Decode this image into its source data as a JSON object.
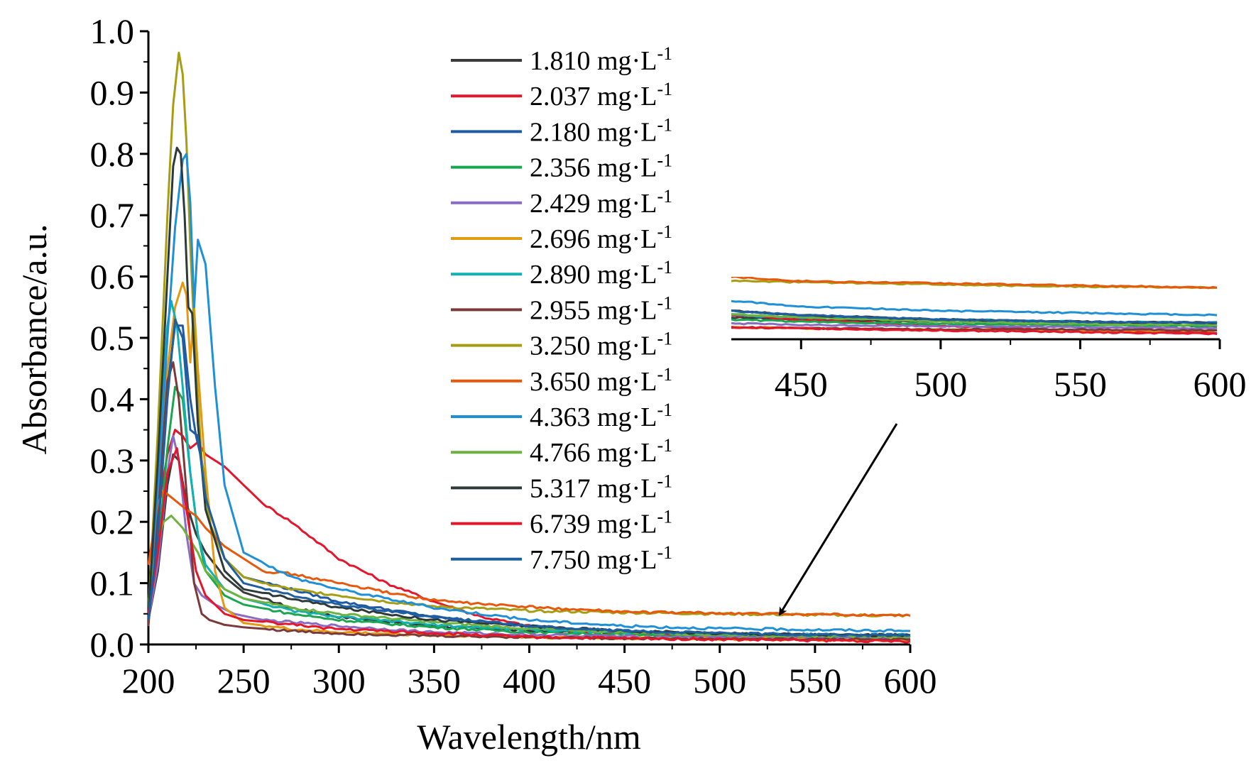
{
  "chart_data": {
    "type": "line",
    "xlabel": "Wavelength/nm",
    "ylabel": "Absorbance/a.u.",
    "xlim": [
      200,
      600
    ],
    "ylim": [
      0.0,
      1.0
    ],
    "x_ticks": [
      "200",
      "250",
      "300",
      "350",
      "400",
      "450",
      "500",
      "550",
      "600"
    ],
    "y_ticks": [
      "0.0",
      "0.1",
      "0.2",
      "0.3",
      "0.4",
      "0.5",
      "0.6",
      "0.7",
      "0.8",
      "0.9",
      "1.0"
    ],
    "legend_position": "top-right",
    "legend_unit": "mg·L",
    "legend_superscript": "-1",
    "series": [
      {
        "name": "1.810",
        "color": "#3a3a3a",
        "x": [
          200,
          205,
          210,
          213,
          216,
          220,
          225,
          230,
          240,
          250,
          275,
          300,
          350,
          400,
          450,
          500,
          550,
          600
        ],
        "y": [
          0.04,
          0.12,
          0.26,
          0.31,
          0.3,
          0.23,
          0.18,
          0.15,
          0.11,
          0.085,
          0.06,
          0.045,
          0.03,
          0.022,
          0.018,
          0.016,
          0.014,
          0.012
        ]
      },
      {
        "name": "2.037",
        "color": "#e4162b",
        "x": [
          200,
          205,
          210,
          214,
          218,
          222,
          226,
          230,
          240,
          250,
          260,
          275,
          300,
          325,
          350,
          375,
          400,
          425,
          450,
          500,
          550,
          600
        ],
        "y": [
          0.13,
          0.22,
          0.31,
          0.35,
          0.34,
          0.32,
          0.33,
          0.31,
          0.29,
          0.26,
          0.23,
          0.2,
          0.14,
          0.1,
          0.07,
          0.045,
          0.03,
          0.022,
          0.018,
          0.012,
          0.008,
          0.006
        ]
      },
      {
        "name": "2.180",
        "color": "#1f5aa6",
        "x": [
          200,
          205,
          210,
          214,
          218,
          222,
          225,
          228,
          232,
          240,
          250,
          275,
          300,
          350,
          400,
          450,
          500,
          550,
          600
        ],
        "y": [
          0.05,
          0.22,
          0.42,
          0.52,
          0.52,
          0.4,
          0.34,
          0.3,
          0.22,
          0.14,
          0.11,
          0.09,
          0.07,
          0.045,
          0.03,
          0.022,
          0.018,
          0.016,
          0.015
        ]
      },
      {
        "name": "2.356",
        "color": "#1aa650",
        "x": [
          200,
          205,
          210,
          214,
          218,
          222,
          226,
          230,
          240,
          250,
          275,
          300,
          350,
          400,
          450,
          500,
          550,
          600
        ],
        "y": [
          0.04,
          0.15,
          0.32,
          0.42,
          0.4,
          0.28,
          0.18,
          0.12,
          0.08,
          0.065,
          0.05,
          0.04,
          0.028,
          0.02,
          0.016,
          0.014,
          0.013,
          0.012
        ]
      },
      {
        "name": "2.429",
        "color": "#8a6cc2",
        "x": [
          200,
          205,
          210,
          213,
          216,
          220,
          224,
          228,
          235,
          245,
          260,
          300,
          350,
          400,
          450,
          500,
          550,
          600
        ],
        "y": [
          0.04,
          0.13,
          0.28,
          0.34,
          0.3,
          0.18,
          0.1,
          0.08,
          0.065,
          0.05,
          0.04,
          0.03,
          0.02,
          0.016,
          0.013,
          0.012,
          0.011,
          0.01
        ]
      },
      {
        "name": "2.696",
        "color": "#e39a10",
        "x": [
          200,
          205,
          210,
          214,
          218,
          220,
          222,
          224,
          226,
          230,
          235,
          240,
          250,
          275,
          300,
          350,
          400,
          450,
          500,
          550,
          600
        ],
        "y": [
          0.06,
          0.25,
          0.45,
          0.55,
          0.59,
          0.57,
          0.46,
          0.55,
          0.45,
          0.28,
          0.12,
          0.06,
          0.035,
          0.025,
          0.02,
          0.015,
          0.012,
          0.01,
          0.009,
          0.008,
          0.008
        ]
      },
      {
        "name": "2.890",
        "color": "#12b1b1",
        "x": [
          200,
          205,
          210,
          212,
          215,
          218,
          222,
          226,
          230,
          240,
          250,
          275,
          300,
          350,
          400,
          450,
          500,
          550,
          600
        ],
        "y": [
          0.06,
          0.3,
          0.52,
          0.56,
          0.52,
          0.42,
          0.28,
          0.18,
          0.13,
          0.09,
          0.075,
          0.055,
          0.045,
          0.032,
          0.024,
          0.02,
          0.018,
          0.016,
          0.015
        ]
      },
      {
        "name": "2.955",
        "color": "#7a3a3a",
        "x": [
          200,
          205,
          210,
          213,
          216,
          220,
          224,
          228,
          232,
          240,
          250,
          275,
          300,
          350,
          400,
          450,
          500,
          550,
          600
        ],
        "y": [
          0.03,
          0.22,
          0.43,
          0.46,
          0.4,
          0.25,
          0.1,
          0.05,
          0.04,
          0.032,
          0.028,
          0.022,
          0.018,
          0.014,
          0.012,
          0.01,
          0.009,
          0.009,
          0.008
        ]
      },
      {
        "name": "3.250",
        "color": "#a69d13",
        "x": [
          200,
          205,
          210,
          213,
          216,
          218,
          220,
          222,
          225,
          228,
          232,
          240,
          250,
          260,
          275,
          300,
          325,
          350,
          400,
          450,
          500,
          550,
          600
        ],
        "y": [
          0.05,
          0.35,
          0.7,
          0.88,
          0.965,
          0.93,
          0.82,
          0.65,
          0.45,
          0.3,
          0.2,
          0.14,
          0.11,
          0.1,
          0.09,
          0.08,
          0.07,
          0.062,
          0.055,
          0.052,
          0.05,
          0.048,
          0.047
        ]
      },
      {
        "name": "3.650",
        "color": "#e8580c",
        "x": [
          200,
          205,
          208,
          212,
          216,
          220,
          225,
          230,
          240,
          250,
          260,
          275,
          300,
          325,
          350,
          375,
          400,
          425,
          450,
          475,
          500,
          550,
          600
        ],
        "y": [
          0.13,
          0.23,
          0.25,
          0.24,
          0.23,
          0.22,
          0.21,
          0.19,
          0.16,
          0.14,
          0.12,
          0.115,
          0.1,
          0.085,
          0.072,
          0.066,
          0.061,
          0.057,
          0.053,
          0.052,
          0.051,
          0.049,
          0.047
        ]
      },
      {
        "name": "4.363",
        "color": "#1f8fd6",
        "x": [
          200,
          205,
          210,
          214,
          218,
          220,
          222,
          224,
          226,
          230,
          235,
          240,
          250,
          275,
          300,
          350,
          400,
          450,
          500,
          550,
          600
        ],
        "y": [
          0.05,
          0.25,
          0.5,
          0.68,
          0.79,
          0.8,
          0.72,
          0.55,
          0.66,
          0.62,
          0.42,
          0.26,
          0.15,
          0.11,
          0.09,
          0.06,
          0.04,
          0.03,
          0.026,
          0.024,
          0.022
        ]
      },
      {
        "name": "4.766",
        "color": "#6db33f",
        "x": [
          200,
          205,
          208,
          212,
          215,
          218,
          222,
          226,
          230,
          240,
          250,
          275,
          300,
          350,
          400,
          450,
          500,
          550,
          600
        ],
        "y": [
          0.07,
          0.17,
          0.2,
          0.21,
          0.2,
          0.19,
          0.17,
          0.15,
          0.12,
          0.09,
          0.075,
          0.06,
          0.05,
          0.036,
          0.026,
          0.02,
          0.016,
          0.014,
          0.013
        ]
      },
      {
        "name": "5.317",
        "color": "#2d3a3a",
        "x": [
          200,
          205,
          210,
          213,
          215,
          217,
          219,
          221,
          223,
          226,
          230,
          240,
          250,
          275,
          300,
          350,
          400,
          450,
          500,
          550,
          600
        ],
        "y": [
          0.05,
          0.3,
          0.6,
          0.78,
          0.81,
          0.8,
          0.7,
          0.55,
          0.54,
          0.36,
          0.22,
          0.12,
          0.09,
          0.075,
          0.06,
          0.04,
          0.03,
          0.022,
          0.018,
          0.016,
          0.015
        ]
      },
      {
        "name": "6.739",
        "color": "#e4162b",
        "x": [
          200,
          205,
          210,
          215,
          220,
          225,
          230,
          240,
          250,
          300,
          400,
          500,
          600
        ],
        "y": [
          0.05,
          0.15,
          0.28,
          0.32,
          0.22,
          0.12,
          0.08,
          0.05,
          0.04,
          0.025,
          0.012,
          0.008,
          0.005
        ]
      },
      {
        "name": "7.750",
        "color": "#1f5fa0",
        "x": [
          200,
          205,
          210,
          214,
          218,
          222,
          226,
          230,
          240,
          250,
          275,
          300,
          350,
          400,
          450,
          500,
          550,
          600
        ],
        "y": [
          0.04,
          0.18,
          0.4,
          0.53,
          0.5,
          0.35,
          0.34,
          0.24,
          0.14,
          0.1,
          0.08,
          0.065,
          0.045,
          0.03,
          0.022,
          0.018,
          0.016,
          0.015
        ]
      }
    ],
    "inset": {
      "xlim": [
        425,
        600
      ],
      "x_ticks": [
        "450",
        "500",
        "550",
        "600"
      ]
    },
    "annotations": [
      {
        "type": "arrow",
        "from_label": "inset",
        "to_x": 530,
        "to_y": 0.05
      }
    ]
  }
}
